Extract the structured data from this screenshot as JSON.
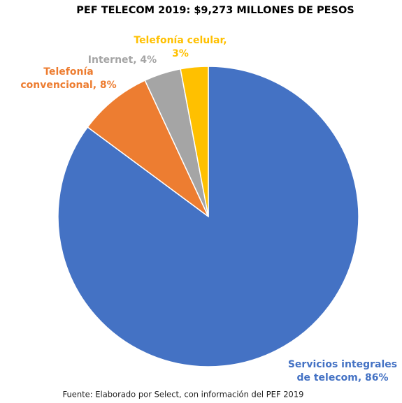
{
  "chart_data": {
    "type": "pie",
    "title": "PEF TELECOM 2019: $9,273 MILLONES DE PESOS",
    "note": "Fuente: Elaborado por Select, con información del PEF 2019",
    "values": [
      86,
      8,
      4,
      3
    ],
    "value_labels": [
      [
        "Servicios integrales",
        "de telecom, 86%"
      ],
      [
        "Telefonía",
        "convencional, 8%"
      ],
      [
        "Internet, 4%"
      ],
      [
        "Telefonía celular,",
        "3%"
      ]
    ],
    "colors": [
      "#4472c4",
      "#ed7d31",
      "#a5a5a5",
      "#ffc000"
    ]
  }
}
